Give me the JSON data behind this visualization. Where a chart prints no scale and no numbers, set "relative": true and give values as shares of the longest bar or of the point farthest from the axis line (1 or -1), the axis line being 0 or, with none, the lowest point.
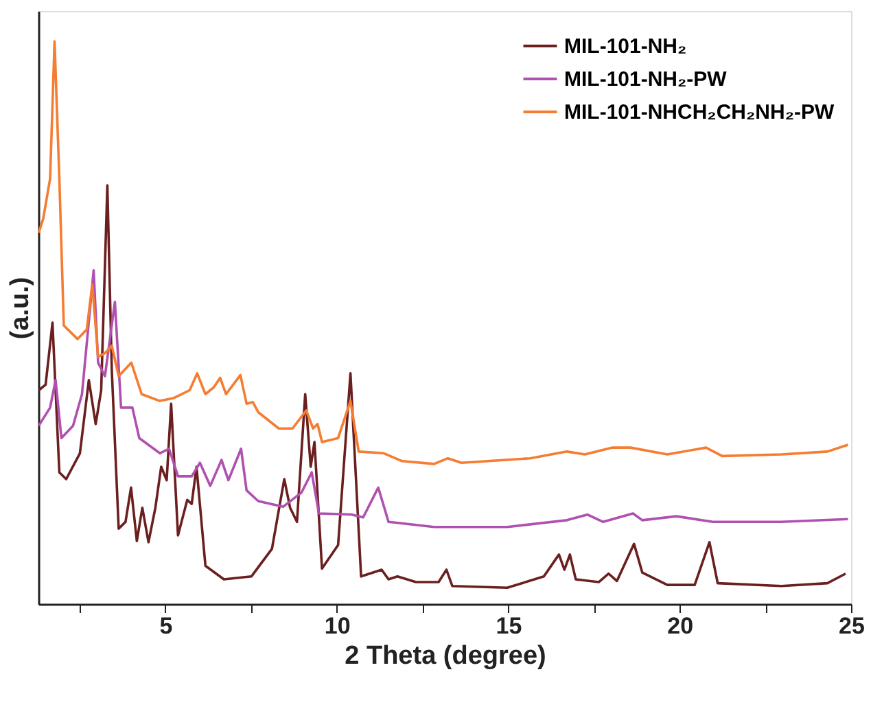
{
  "chart_data": {
    "type": "line",
    "relative": true,
    "xlabel": "2 Theta (degree)",
    "ylabel": "(a.u.)",
    "xlim": [
      1.3,
      25
    ],
    "xticks": [
      {
        "value": 2.5,
        "label": null
      },
      5,
      {
        "value": 7.5,
        "label": null
      },
      10,
      {
        "value": 12.5,
        "label": null
      },
      15,
      {
        "value": 17.5,
        "label": null
      },
      20,
      {
        "value": 22.5,
        "label": null
      },
      25
    ],
    "legend": "top right",
    "grid": false,
    "line_style": "solid",
    "series": [
      {
        "name": "MIL-101-NH₂",
        "color": "#6b1f1f",
        "x": [
          1.31,
          1.51,
          1.71,
          1.91,
          2.11,
          2.51,
          2.77,
          2.97,
          3.13,
          3.31,
          3.44,
          3.64,
          3.84,
          4.0,
          4.17,
          4.33,
          4.51,
          4.71,
          4.88,
          5.04,
          5.17,
          5.37,
          5.64,
          5.77,
          5.91,
          6.17,
          6.71,
          7.51,
          8.11,
          8.47,
          8.64,
          8.84,
          9.08,
          9.24,
          9.35,
          9.57,
          10.04,
          10.4,
          10.71,
          11.31,
          11.51,
          11.77,
          12.31,
          12.97,
          13.2,
          13.37,
          14.97,
          16.04,
          16.48,
          16.64,
          16.8,
          16.97,
          17.64,
          17.93,
          18.17,
          18.67,
          18.91,
          19.64,
          20.44,
          20.87,
          21.11,
          22.97,
          24.31,
          24.84
        ],
        "values": [
          0.38,
          0.39,
          0.5,
          0.234,
          0.222,
          0.268,
          0.398,
          0.32,
          0.38,
          0.744,
          0.415,
          0.134,
          0.146,
          0.207,
          0.112,
          0.171,
          0.11,
          0.171,
          0.244,
          0.22,
          0.356,
          0.122,
          0.185,
          0.178,
          0.244,
          0.068,
          0.044,
          0.049,
          0.098,
          0.222,
          0.171,
          0.146,
          0.373,
          0.244,
          0.288,
          0.063,
          0.105,
          0.41,
          0.049,
          0.061,
          0.044,
          0.049,
          0.039,
          0.039,
          0.061,
          0.032,
          0.029,
          0.049,
          0.088,
          0.061,
          0.088,
          0.044,
          0.039,
          0.054,
          0.041,
          0.107,
          0.056,
          0.034,
          0.034,
          0.11,
          0.037,
          0.032,
          0.037,
          0.054
        ]
      },
      {
        "name": "MIL-101-NH₂-PW",
        "color": "#b050b0",
        "x": [
          1.31,
          1.64,
          1.8,
          1.97,
          2.31,
          2.57,
          2.91,
          3.04,
          3.24,
          3.53,
          3.71,
          4.04,
          4.24,
          4.84,
          5.11,
          5.37,
          5.77,
          6.01,
          6.31,
          6.64,
          6.84,
          7.21,
          7.37,
          7.71,
          8.44,
          8.97,
          9.27,
          9.48,
          10.44,
          10.77,
          11.21,
          11.51,
          12.84,
          14.97,
          16.71,
          17.31,
          17.77,
          18.64,
          18.91,
          19.91,
          20.97,
          22.97,
          24.91
        ],
        "values": [
          0.317,
          0.349,
          0.398,
          0.295,
          0.317,
          0.373,
          0.593,
          0.429,
          0.405,
          0.537,
          0.349,
          0.349,
          0.295,
          0.268,
          0.276,
          0.227,
          0.227,
          0.251,
          0.21,
          0.256,
          0.22,
          0.276,
          0.202,
          0.183,
          0.173,
          0.198,
          0.234,
          0.161,
          0.159,
          0.154,
          0.207,
          0.146,
          0.137,
          0.137,
          0.149,
          0.159,
          0.146,
          0.161,
          0.149,
          0.156,
          0.146,
          0.146,
          0.151
        ]
      },
      {
        "name": "MIL-101-NHCH₂CH₂NH₂-PW",
        "color": "#f57c30",
        "x": [
          1.31,
          1.44,
          1.64,
          1.77,
          1.91,
          2.04,
          2.44,
          2.71,
          2.87,
          3.04,
          3.24,
          3.44,
          3.64,
          4.01,
          4.31,
          4.84,
          5.24,
          5.71,
          5.93,
          6.17,
          6.41,
          6.6,
          6.77,
          7.19,
          7.37,
          7.55,
          7.71,
          8.31,
          8.71,
          9.11,
          9.31,
          9.44,
          9.57,
          10.04,
          10.4,
          10.64,
          11.37,
          11.91,
          12.84,
          13.24,
          13.64,
          15.64,
          16.71,
          17.24,
          18.04,
          18.57,
          19.64,
          20.77,
          21.24,
          22.97,
          24.31,
          24.91
        ],
        "values": [
          0.66,
          0.685,
          0.756,
          1.0,
          0.756,
          0.495,
          0.471,
          0.488,
          0.568,
          0.439,
          0.446,
          0.459,
          0.405,
          0.429,
          0.373,
          0.361,
          0.366,
          0.38,
          0.41,
          0.373,
          0.385,
          0.402,
          0.373,
          0.407,
          0.356,
          0.359,
          0.341,
          0.312,
          0.312,
          0.344,
          0.312,
          0.32,
          0.288,
          0.295,
          0.361,
          0.271,
          0.268,
          0.254,
          0.249,
          0.259,
          0.251,
          0.259,
          0.271,
          0.266,
          0.278,
          0.278,
          0.266,
          0.278,
          0.263,
          0.266,
          0.271,
          0.283
        ]
      }
    ]
  }
}
